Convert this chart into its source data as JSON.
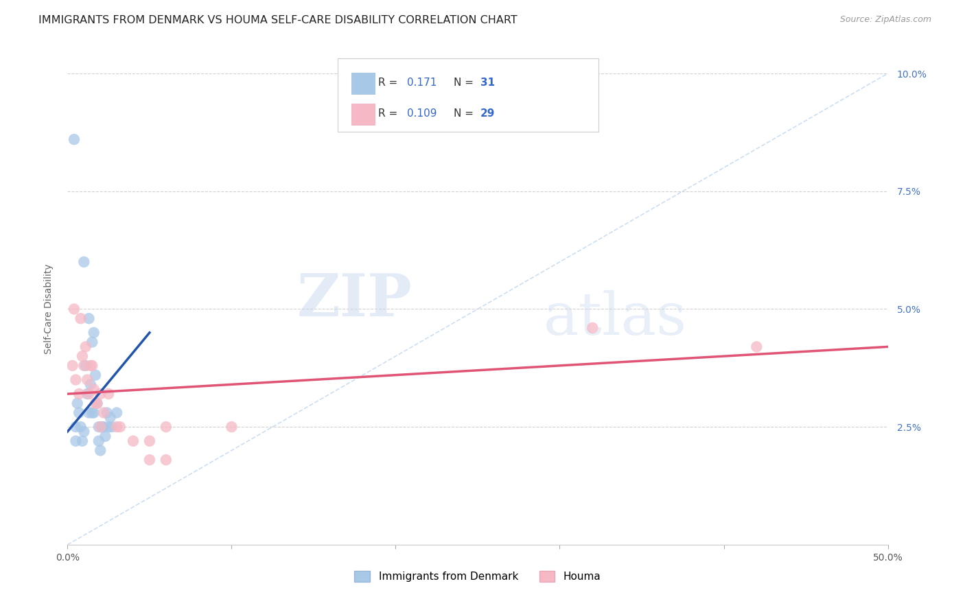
{
  "title": "IMMIGRANTS FROM DENMARK VS HOUMA SELF-CARE DISABILITY CORRELATION CHART",
  "source": "Source: ZipAtlas.com",
  "ylabel": "Self-Care Disability",
  "legend_labels": [
    "Immigrants from Denmark",
    "Houma"
  ],
  "xlim": [
    0.0,
    0.5
  ],
  "ylim": [
    0.0,
    0.1
  ],
  "xticks": [
    0.0,
    0.1,
    0.2,
    0.3,
    0.4,
    0.5
  ],
  "xtick_labels_show": [
    "0.0%",
    "",
    "",
    "",
    "",
    "50.0%"
  ],
  "yticks": [
    0.0,
    0.025,
    0.05,
    0.075,
    0.1
  ],
  "ytick_labels": [
    "",
    "2.5%",
    "5.0%",
    "7.5%",
    "10.0%"
  ],
  "blue_scatter_x": [
    0.004,
    0.005,
    0.005,
    0.006,
    0.007,
    0.008,
    0.009,
    0.01,
    0.01,
    0.011,
    0.012,
    0.013,
    0.013,
    0.014,
    0.015,
    0.015,
    0.016,
    0.016,
    0.017,
    0.018,
    0.019,
    0.019,
    0.02,
    0.021,
    0.022,
    0.023,
    0.024,
    0.025,
    0.026,
    0.027,
    0.03
  ],
  "blue_scatter_y": [
    0.086,
    0.022,
    0.025,
    0.03,
    0.028,
    0.025,
    0.022,
    0.024,
    0.06,
    0.038,
    0.032,
    0.048,
    0.028,
    0.034,
    0.043,
    0.028,
    0.028,
    0.045,
    0.036,
    0.03,
    0.025,
    0.022,
    0.02,
    0.025,
    0.025,
    0.023,
    0.028,
    0.025,
    0.027,
    0.025,
    0.028
  ],
  "pink_scatter_x": [
    0.003,
    0.004,
    0.005,
    0.007,
    0.008,
    0.009,
    0.01,
    0.011,
    0.012,
    0.013,
    0.014,
    0.015,
    0.016,
    0.017,
    0.018,
    0.02,
    0.02,
    0.022,
    0.025,
    0.03,
    0.032,
    0.04,
    0.05,
    0.06,
    0.1,
    0.32,
    0.42,
    0.05,
    0.06
  ],
  "pink_scatter_y": [
    0.038,
    0.05,
    0.035,
    0.032,
    0.048,
    0.04,
    0.038,
    0.042,
    0.035,
    0.032,
    0.038,
    0.038,
    0.033,
    0.03,
    0.03,
    0.032,
    0.025,
    0.028,
    0.032,
    0.025,
    0.025,
    0.022,
    0.022,
    0.025,
    0.025,
    0.046,
    0.042,
    0.018,
    0.018
  ],
  "blue_line_x": [
    0.0,
    0.05
  ],
  "blue_line_y": [
    0.024,
    0.045
  ],
  "pink_line_x": [
    0.0,
    0.5
  ],
  "pink_line_y": [
    0.032,
    0.042
  ],
  "dashed_line_x": [
    0.0,
    0.5
  ],
  "dashed_line_y": [
    0.0,
    0.1
  ],
  "dot_color_blue": "#a8c8e8",
  "dot_color_pink": "#f5b8c4",
  "line_color_blue": "#2255aa",
  "line_color_pink": "#e05575",
  "dashed_color": "#aac8e8",
  "background_color": "#ffffff",
  "watermark_zip": "ZIP",
  "watermark_atlas": "atlas",
  "title_fontsize": 11.5,
  "axis_label_fontsize": 10,
  "tick_fontsize": 10,
  "legend_fontsize": 11,
  "source_fontsize": 9
}
